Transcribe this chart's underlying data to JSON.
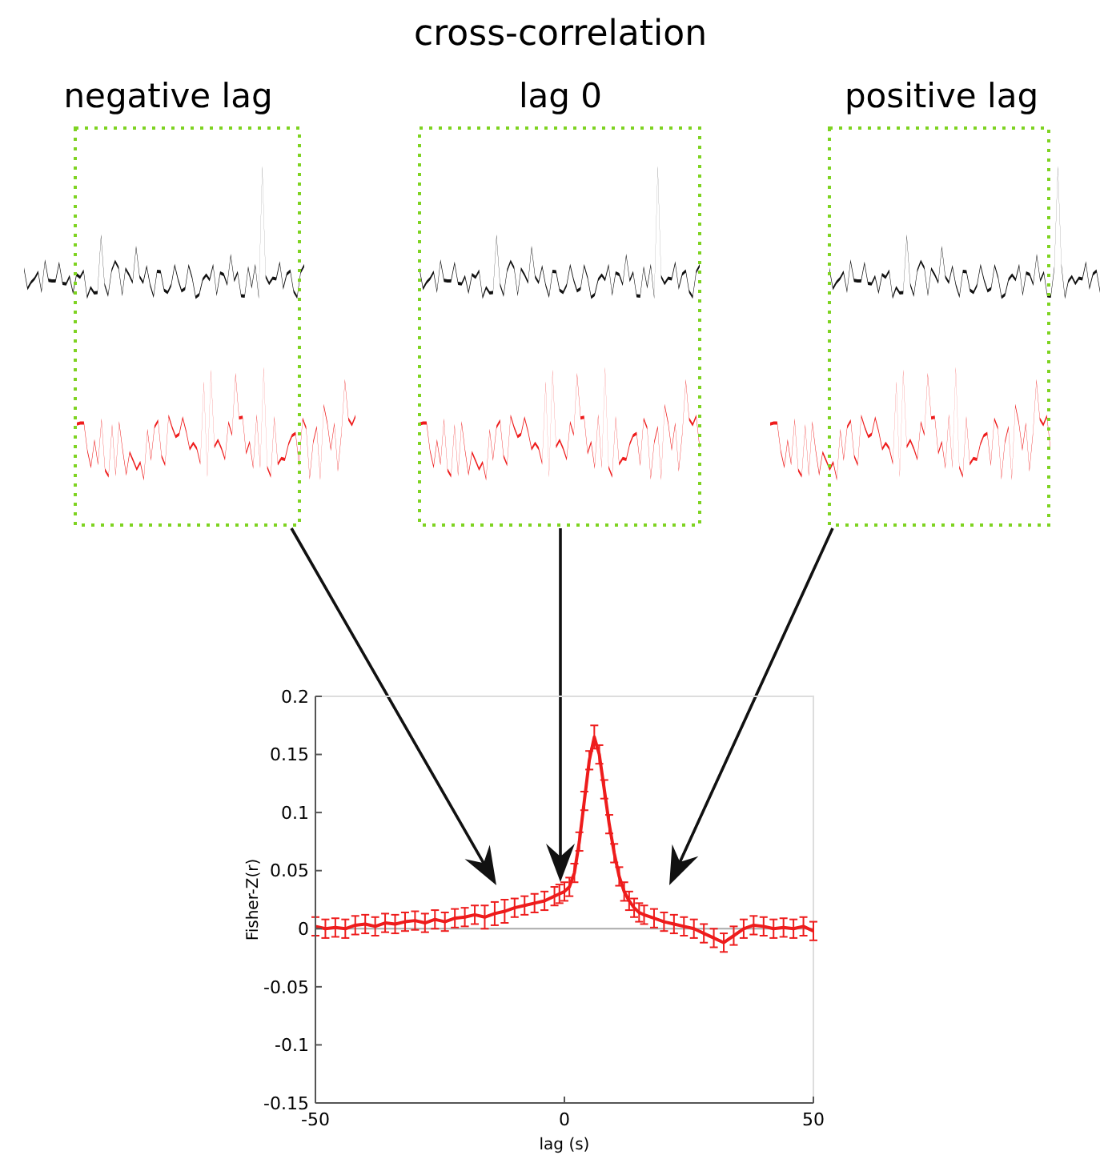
{
  "chart_data": {
    "type": "line",
    "title": "cross-correlation",
    "xlabel": "lag (s)",
    "ylabel": "Fisher-Z(r)",
    "annotations": [
      "negative lag",
      "lag 0",
      "positive lag"
    ],
    "x": [
      -50,
      -48,
      -46,
      -44,
      -42,
      -40,
      -38,
      -36,
      -34,
      -32,
      -30,
      -28,
      -26,
      -24,
      -22,
      -20,
      -18,
      -16,
      -14,
      -12,
      -10,
      -8,
      -6,
      -4,
      -2,
      -1,
      0,
      1,
      2,
      3,
      4,
      5,
      6,
      7,
      8,
      9,
      10,
      11,
      12,
      13,
      14,
      15,
      16,
      18,
      20,
      22,
      24,
      26,
      28,
      30,
      32,
      34,
      36,
      38,
      40,
      42,
      44,
      46,
      48,
      50
    ],
    "values": [
      0.002,
      0,
      0.001,
      0,
      0.003,
      0.004,
      0.002,
      0.005,
      0.004,
      0.006,
      0.007,
      0.005,
      0.008,
      0.006,
      0.009,
      0.01,
      0.012,
      0.01,
      0.013,
      0.015,
      0.018,
      0.02,
      0.022,
      0.024,
      0.028,
      0.03,
      0.032,
      0.036,
      0.048,
      0.075,
      0.11,
      0.145,
      0.165,
      0.15,
      0.12,
      0.09,
      0.065,
      0.045,
      0.032,
      0.024,
      0.018,
      0.014,
      0.012,
      0.009,
      0.006,
      0.004,
      0.002,
      0,
      -0.004,
      -0.008,
      -0.012,
      -0.006,
      0,
      0.003,
      0.002,
      0,
      0.001,
      0,
      0.002,
      -0.002
    ],
    "errors": [
      0.008,
      0.008,
      0.008,
      0.008,
      0.008,
      0.008,
      0.008,
      0.008,
      0.008,
      0.008,
      0.008,
      0.008,
      0.008,
      0.008,
      0.008,
      0.008,
      0.008,
      0.01,
      0.01,
      0.01,
      0.008,
      0.008,
      0.008,
      0.008,
      0.008,
      0.008,
      0.008,
      0.008,
      0.008,
      0.008,
      0.008,
      0.008,
      0.01,
      0.008,
      0.008,
      0.008,
      0.008,
      0.008,
      0.008,
      0.008,
      0.008,
      0.008,
      0.008,
      0.008,
      0.008,
      0.008,
      0.008,
      0.008,
      0.008,
      0.008,
      0.008,
      0.008,
      0.008,
      0.008,
      0.008,
      0.008,
      0.008,
      0.008,
      0.008,
      0.008
    ],
    "color": "#ee1c1c",
    "xlim": [
      -50,
      50
    ],
    "xticks": [
      -50,
      0,
      50
    ],
    "ylim": [
      -0.15,
      0.2
    ],
    "yticks": [
      -0.15,
      -0.1,
      -0.05,
      0,
      0.05,
      0.1,
      0.15,
      0.2
    ],
    "ref_lines": [
      {
        "axis": "y",
        "value": 0,
        "color": "#aaaaaa"
      }
    ],
    "grid": false
  }
}
